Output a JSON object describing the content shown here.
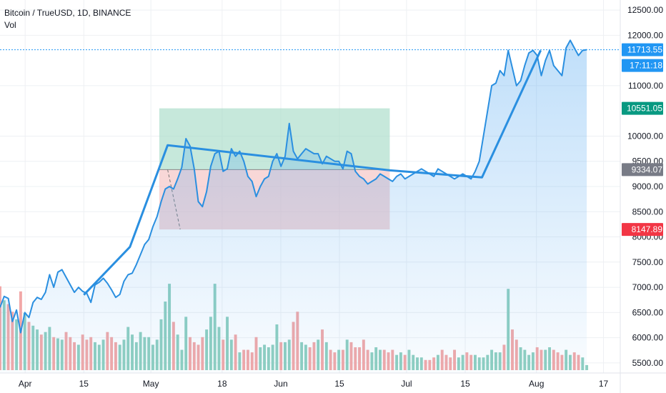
{
  "legend": {
    "title": "Bitcoin / TrueUSD, 1D, BINANCE",
    "indicator": "Vol"
  },
  "colors": {
    "price_line": "#2a8fe0",
    "area_fill": "#4aa3f0",
    "vol_up": "#8fcfc0",
    "vol_down": "#f2a8a8",
    "profit_zone": "#a8dcc7",
    "loss_zone": "#f4c2c2",
    "last_price_tag": "#2196f3",
    "target_tag": "#089981",
    "entry_tag": "#787b86",
    "stop_tag": "#f23645",
    "grid": "#eef0f3",
    "axis_text": "#131722"
  },
  "chart_data": {
    "type": "line",
    "title": "Bitcoin / TrueUSD, 1D, BINANCE",
    "series": [
      {
        "name": "Bitcoin / TrueUSD",
        "values": [
          6600,
          6820,
          6780,
          6320,
          6550,
          6100,
          6500,
          6400,
          6700,
          6800,
          6760,
          6900,
          7250,
          7000,
          7300,
          7350,
          7200,
          7050,
          6900,
          7000,
          6920,
          6880,
          6700,
          7050,
          7100,
          7180,
          7080,
          6950,
          6800,
          6860,
          7120,
          7250,
          7280,
          7450,
          7650,
          7850,
          7950,
          8200,
          8400,
          8700,
          8950,
          9000,
          8950,
          9150,
          9380,
          9950,
          9800,
          9350,
          8700,
          8600,
          8900,
          9400,
          9650,
          9700,
          9300,
          9350,
          9750,
          9600,
          9700,
          9500,
          9200,
          9100,
          8800,
          9000,
          9150,
          9200,
          9500,
          9650,
          9400,
          9600,
          10250,
          9700,
          9550,
          9650,
          9750,
          9700,
          9650,
          9650,
          9450,
          9600,
          9550,
          9500,
          9500,
          9350,
          9700,
          9650,
          9300,
          9200,
          9150,
          9050,
          9100,
          9150,
          9250,
          9200,
          9150,
          9100,
          9200,
          9250,
          9150,
          9200,
          9250,
          9300,
          9350,
          9300,
          9250,
          9200,
          9350,
          9300,
          9250,
          9200,
          9150,
          9200,
          9250,
          9200,
          9150,
          9300,
          9500,
          10000,
          10500,
          11000,
          11050,
          11300,
          11200,
          11700,
          11350,
          11000,
          11100,
          11400,
          11650,
          11700,
          11600,
          11200,
          11500,
          11700,
          11400,
          11300,
          11200,
          11750,
          11900,
          11750,
          11600,
          11700,
          11713.55
        ],
        "x_start": "2020-03-26",
        "x_end": "2020-08-13"
      },
      {
        "name": "Vol",
        "values": [
          6.6,
          5.5,
          5.2,
          4.6,
          4.0,
          6.2,
          4.5,
          3.8,
          3.5,
          3.2,
          2.8,
          3.0,
          3.4,
          2.6,
          2.5,
          2.4,
          3.0,
          2.6,
          2.2,
          2.0,
          2.8,
          2.4,
          2.6,
          2.2,
          2.0,
          2.4,
          3.0,
          2.6,
          2.2,
          2.0,
          2.4,
          3.4,
          2.8,
          2.2,
          3.0,
          2.6,
          2.6,
          2.0,
          2.4,
          4.0,
          5.4,
          6.8,
          3.8,
          2.8,
          1.6,
          4.2,
          2.6,
          2.2,
          2.0,
          2.6,
          3.2,
          4.2,
          6.8,
          3.4,
          2.4,
          4.2,
          2.4,
          2.8,
          1.4,
          1.6,
          1.6,
          1.4,
          2.6,
          1.8,
          2.0,
          1.8,
          2.0,
          3.6,
          2.2,
          2.2,
          2.4,
          3.8,
          4.6,
          2.2,
          2.0,
          1.8,
          2.2,
          2.4,
          3.2,
          2.2,
          1.6,
          1.4,
          1.6,
          1.6,
          2.4,
          2.2,
          1.8,
          1.8,
          2.4,
          1.6,
          1.4,
          1.8,
          1.6,
          1.6,
          1.4,
          1.6,
          1.2,
          1.4,
          1.2,
          1.6,
          1.2,
          1.0,
          1.0,
          0.8,
          0.8,
          1.0,
          1.2,
          1.6,
          1.2,
          1.0,
          1.6,
          1.0,
          1.2,
          1.4,
          1.2,
          1.2,
          1.0,
          1.0,
          1.2,
          1.6,
          1.4,
          1.4,
          2.0,
          6.4,
          3.2,
          2.4,
          1.8,
          1.6,
          1.2,
          1.4,
          1.8,
          1.6,
          1.6,
          1.8,
          1.6,
          1.4,
          1.2,
          1.6,
          1.2,
          1.4,
          1.2,
          1.0,
          0.4
        ],
        "up": [
          0,
          1,
          0,
          0,
          1,
          0,
          1,
          0,
          1,
          1,
          0,
          1,
          1,
          0,
          1,
          1,
          0,
          0,
          0,
          1,
          0,
          0,
          0,
          1,
          1,
          1,
          0,
          0,
          0,
          1,
          1,
          1,
          1,
          1,
          1,
          1,
          1,
          1,
          1,
          1,
          1,
          1,
          0,
          1,
          1,
          1,
          0,
          0,
          0,
          0,
          1,
          1,
          1,
          1,
          0,
          1,
          1,
          0,
          1,
          0,
          0,
          0,
          0,
          1,
          1,
          1,
          1,
          1,
          0,
          1,
          1,
          0,
          0,
          1,
          1,
          0,
          0,
          1,
          0,
          1,
          0,
          0,
          1,
          0,
          1,
          0,
          0,
          0,
          0,
          0,
          1,
          1,
          1,
          0,
          0,
          0,
          1,
          1,
          0,
          1,
          1,
          1,
          1,
          0,
          0,
          0,
          1,
          0,
          0,
          0,
          0,
          1,
          1,
          0,
          0,
          1,
          1,
          1,
          1,
          1,
          1,
          1,
          0,
          1,
          0,
          0,
          1,
          1,
          1,
          1,
          0,
          0,
          1,
          1,
          0,
          0,
          0,
          1,
          1,
          0,
          0,
          1,
          1
        ]
      }
    ],
    "y_axis": {
      "ticks": [
        "12500.00",
        "12000.00",
        "11000.00",
        "10000.00",
        "9500.00",
        "9000.00",
        "8500.00",
        "8000.00",
        "7500.00",
        "7000.00",
        "6500.00",
        "6000.00",
        "5500.00"
      ],
      "range": [
        5300,
        12700
      ],
      "scale": "linear",
      "position": "right"
    },
    "x_axis": {
      "ticks": [
        {
          "label": "Apr",
          "date": "2020-04-01"
        },
        {
          "label": "15",
          "date": "2020-04-15"
        },
        {
          "label": "May",
          "date": "2020-05-01"
        },
        {
          "label": "18",
          "date": "2020-05-18"
        },
        {
          "label": "Jun",
          "date": "2020-06-01"
        },
        {
          "label": "15",
          "date": "2020-06-15"
        },
        {
          "label": "Jul",
          "date": "2020-07-01"
        },
        {
          "label": "15",
          "date": "2020-07-15"
        },
        {
          "label": "Aug",
          "date": "2020-08-01"
        },
        {
          "label": "17",
          "date": "2020-08-17"
        }
      ],
      "range": [
        "2020-03-26",
        "2020-08-21"
      ]
    },
    "price_labels": {
      "last": "11713.55",
      "countdown": "17:11:18",
      "target": "10551.05",
      "entry": "9334.07",
      "stop": "8147.89"
    },
    "position_tool": {
      "start_date": "2020-05-03",
      "end_date": "2020-06-27",
      "entry": 9334.07,
      "target": 10551.05,
      "stop": 8147.89,
      "path": [
        {
          "date": "2020-05-05",
          "value": 9334.07
        },
        {
          "date": "2020-05-08",
          "value": 8147.89
        }
      ]
    },
    "trendlines": [
      [
        {
          "date": "2020-04-15",
          "value": 6850
        },
        {
          "date": "2020-04-26",
          "value": 7800
        },
        {
          "date": "2020-05-05",
          "value": 9820
        },
        {
          "date": "2020-06-27",
          "value": 9320
        },
        {
          "date": "2020-07-19",
          "value": 9180
        },
        {
          "date": "2020-08-02",
          "value": 11700
        }
      ]
    ],
    "grid": true,
    "legend_position": "top-left"
  }
}
